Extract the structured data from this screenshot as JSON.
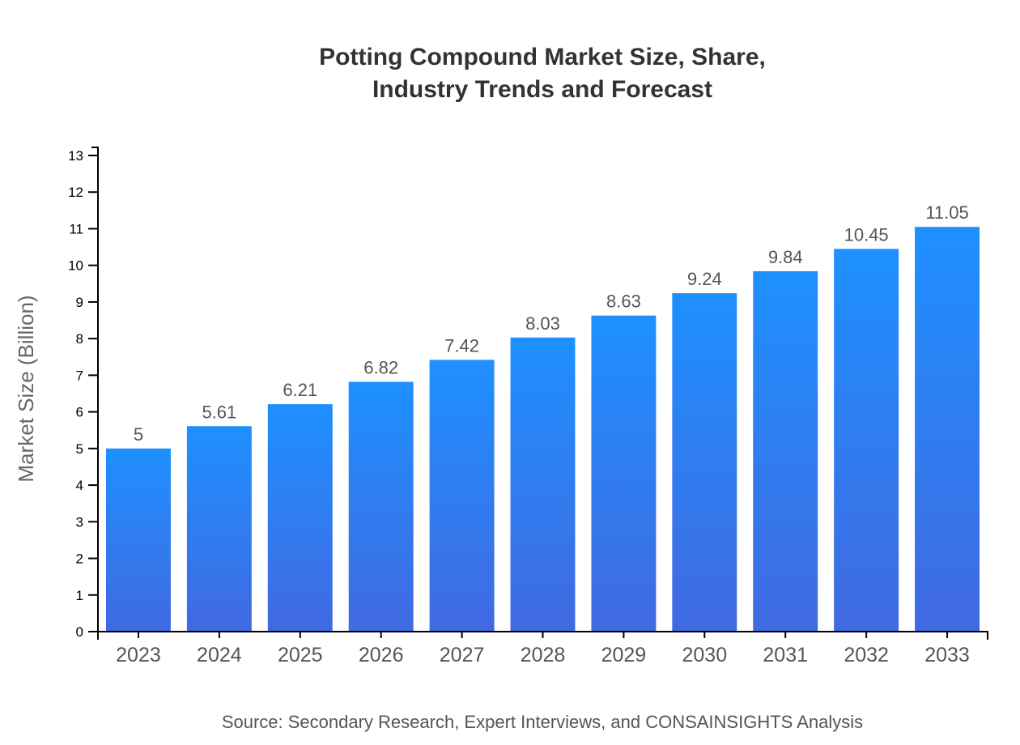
{
  "chart_data": {
    "type": "bar",
    "title": [
      "Potting Compound Market Size, Share,",
      "Industry Trends and Forecast"
    ],
    "xlabel": "",
    "ylabel": "Market Size (Billion)",
    "categories": [
      "2023",
      "2024",
      "2025",
      "2026",
      "2027",
      "2028",
      "2029",
      "2030",
      "2031",
      "2032",
      "2033"
    ],
    "values": [
      5,
      5.61,
      6.21,
      6.82,
      7.42,
      8.03,
      8.63,
      9.24,
      9.84,
      10.45,
      11.05
    ],
    "data_labels": [
      "5",
      "5.61",
      "6.21",
      "6.82",
      "7.42",
      "8.03",
      "8.63",
      "9.24",
      "9.84",
      "10.45",
      "11.05"
    ],
    "ylim": [
      0,
      13
    ],
    "yticks": [
      0,
      1,
      2,
      3,
      4,
      5,
      6,
      7,
      8,
      9,
      10,
      11,
      12,
      13
    ],
    "grid": false,
    "bar_gradient": {
      "top": "#1E90FF",
      "bottom": "#4169E1"
    },
    "source": "Source: Secondary Research, Expert Interviews, and CONSAINSIGHTS Analysis"
  }
}
